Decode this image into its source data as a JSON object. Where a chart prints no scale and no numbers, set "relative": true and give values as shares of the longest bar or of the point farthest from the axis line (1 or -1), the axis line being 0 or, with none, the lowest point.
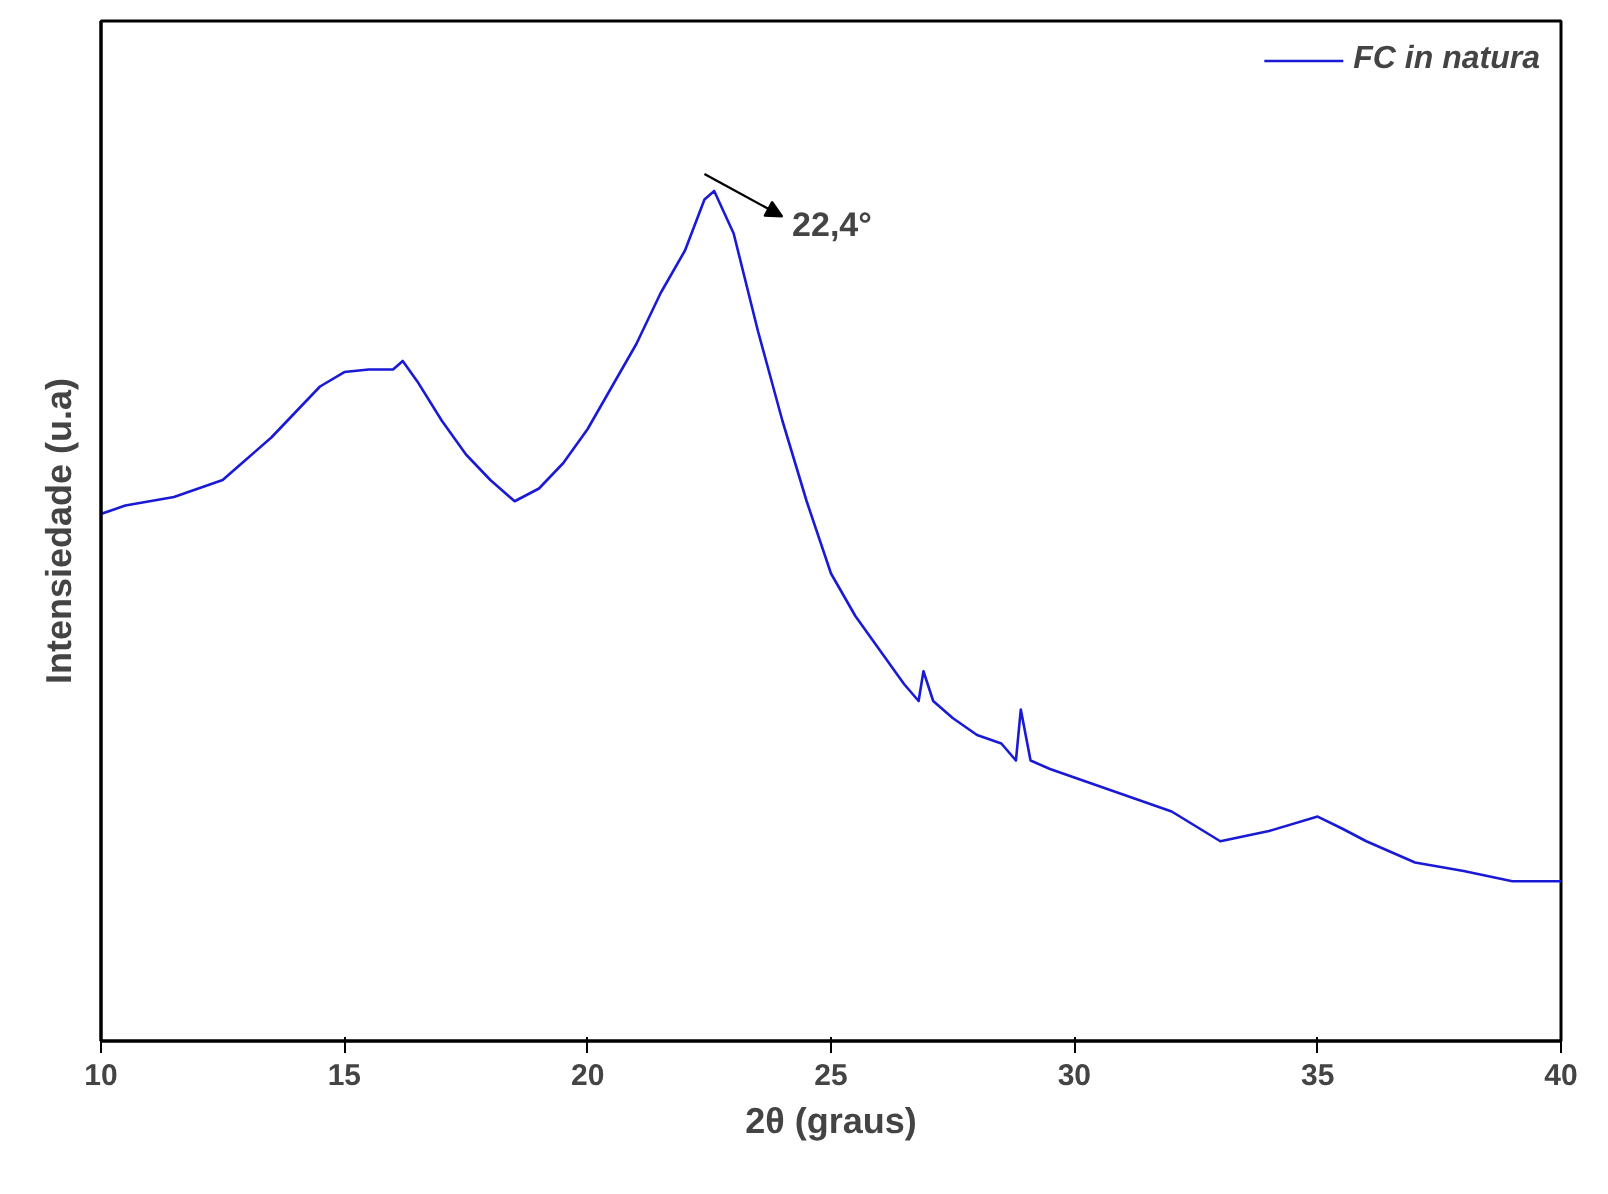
{
  "chart_data": {
    "type": "line",
    "relative": true,
    "xlabel": "2θ (graus)",
    "ylabel": "Intensiedade (u.a)",
    "xlim": [
      10,
      40
    ],
    "xticks": [
      10,
      15,
      20,
      25,
      30,
      35,
      40
    ],
    "legend": "top right",
    "grid": false,
    "marker": "none",
    "line_style": "solid",
    "annotations": [
      {
        "text": "22,4°",
        "x": 22.4,
        "y": 1.0
      }
    ],
    "series": [
      {
        "name": "FC in natura",
        "color": "#1a1ad6",
        "x": [
          10,
          10.5,
          11,
          11.5,
          12,
          12.5,
          13,
          13.5,
          14,
          14.5,
          15,
          15.5,
          16,
          16.2,
          16.5,
          17,
          17.5,
          18,
          18.5,
          19,
          19.5,
          20,
          20.5,
          21,
          21.5,
          22,
          22.4,
          22.6,
          23,
          23.5,
          24,
          24.5,
          25,
          25.5,
          26,
          26.5,
          26.8,
          26.9,
          27.1,
          27.5,
          28,
          28.5,
          28.8,
          28.9,
          29.1,
          29.5,
          30,
          31,
          32,
          33,
          34,
          35,
          35.5,
          36,
          37,
          38,
          39,
          40
        ],
        "values": [
          0.62,
          0.63,
          0.635,
          0.64,
          0.65,
          0.66,
          0.685,
          0.71,
          0.74,
          0.77,
          0.787,
          0.79,
          0.79,
          0.8,
          0.776,
          0.73,
          0.69,
          0.66,
          0.635,
          0.65,
          0.68,
          0.72,
          0.77,
          0.82,
          0.88,
          0.93,
          0.99,
          1.0,
          0.95,
          0.835,
          0.73,
          0.635,
          0.55,
          0.5,
          0.46,
          0.42,
          0.4,
          0.435,
          0.4,
          0.38,
          0.36,
          0.35,
          0.33,
          0.39,
          0.33,
          0.32,
          0.31,
          0.29,
          0.27,
          0.235,
          0.247,
          0.264,
          0.25,
          0.235,
          0.21,
          0.2,
          0.188,
          0.188
        ]
      }
    ]
  }
}
